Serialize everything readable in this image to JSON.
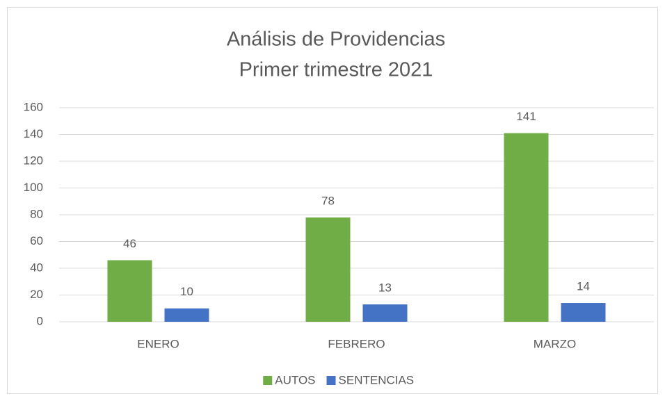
{
  "chart_data": {
    "type": "bar",
    "title": "Análisis de Providencias",
    "subtitle": "Primer trimestre 2021",
    "categories": [
      "ENERO",
      "FEBRERO",
      "MARZO"
    ],
    "series": [
      {
        "name": "AUTOS",
        "color": "#70ad47",
        "values": [
          46,
          78,
          141
        ]
      },
      {
        "name": "SENTENCIAS",
        "color": "#4472c4",
        "values": [
          10,
          13,
          14
        ]
      }
    ],
    "ylim": [
      0,
      160
    ],
    "yticks": [
      0,
      20,
      40,
      60,
      80,
      100,
      120,
      140,
      160
    ],
    "grid": true,
    "legend": "bottom"
  }
}
